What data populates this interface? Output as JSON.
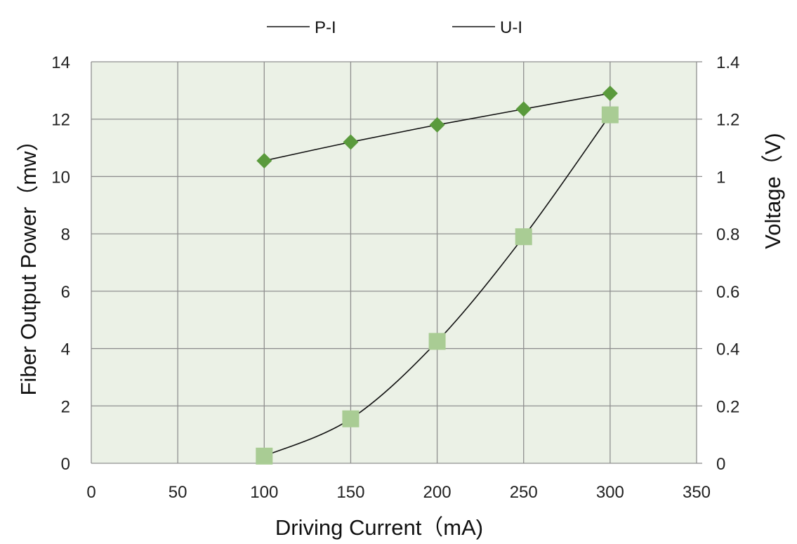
{
  "chart_data": {
    "type": "line",
    "x": [
      100,
      150,
      200,
      250,
      300
    ],
    "xlabel": "Driving Current（mA)",
    "ylabel": "Fiber Output Power（mw）",
    "y2label": "Voltage（V)",
    "xlim": [
      0,
      350
    ],
    "ylim": [
      0,
      14
    ],
    "y2lim": [
      0,
      1.4
    ],
    "xticks": [
      "0",
      "50",
      "100",
      "150",
      "200",
      "250",
      "300",
      "350"
    ],
    "yticks": [
      "0",
      "2",
      "4",
      "6",
      "8",
      "10",
      "12",
      "14"
    ],
    "y2ticks": [
      "0",
      "0.2",
      "0.4",
      "0.6",
      "0.8",
      "1",
      "1.2",
      "1.4"
    ],
    "grid": true,
    "legend_position": "top-center",
    "series": [
      {
        "name": "P-I",
        "axis": "left",
        "marker": "square",
        "color": "#a9cc94",
        "values": [
          0.25,
          1.55,
          4.25,
          7.9,
          12.15
        ]
      },
      {
        "name": "U-I",
        "axis": "right",
        "marker": "diamond",
        "color": "#5a9a3c",
        "values": [
          1.055,
          1.12,
          1.18,
          1.235,
          1.29
        ]
      }
    ],
    "colors": {
      "plot_background": "#ebf1e6",
      "grid": "#8f8f8f",
      "line": "#111111"
    }
  }
}
